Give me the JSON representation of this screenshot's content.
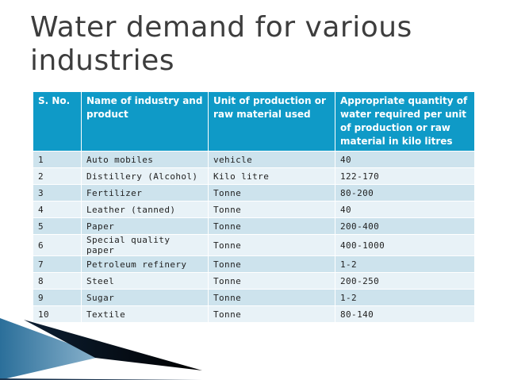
{
  "slide": {
    "title_line1": "Water demand for various",
    "title_line2": "industries"
  },
  "table": {
    "headers": {
      "sno": "S. No.",
      "industry": "Name of industry and product",
      "unit": "Unit of production or raw material used",
      "quantity": "Appropriate quantity of water required per unit of production or raw material in kilo litres"
    },
    "rows": [
      {
        "sno": "1",
        "industry": "Auto mobiles",
        "unit": "vehicle",
        "quantity": "40"
      },
      {
        "sno": "2",
        "industry": "Distillery (Alcohol)",
        "unit": "Kilo litre",
        "quantity": "122-170"
      },
      {
        "sno": "3",
        "industry": "Fertilizer",
        "unit": "Tonne",
        "quantity": "80-200"
      },
      {
        "sno": "4",
        "industry": "Leather (tanned)",
        "unit": "Tonne",
        "quantity": "40"
      },
      {
        "sno": "5",
        "industry": "Paper",
        "unit": "Tonne",
        "quantity": "200-400"
      },
      {
        "sno": "6",
        "industry": "Special quality paper",
        "unit": "Tonne",
        "quantity": "400-1000"
      },
      {
        "sno": "7",
        "industry": "Petroleum refinery",
        "unit": "Tonne",
        "quantity": "1-2"
      },
      {
        "sno": "8",
        "industry": "Steel",
        "unit": "Tonne",
        "quantity": "200-250"
      },
      {
        "sno": "9",
        "industry": "Sugar",
        "unit": "Tonne",
        "quantity": "1-2"
      },
      {
        "sno": "10",
        "industry": "Textile",
        "unit": "Tonne",
        "quantity": "80-140"
      }
    ]
  },
  "colors": {
    "header_bg": "#0f9ac7",
    "row_odd": "#cde3ed",
    "row_even": "#e8f2f7",
    "title_text": "#3d3d3d"
  }
}
